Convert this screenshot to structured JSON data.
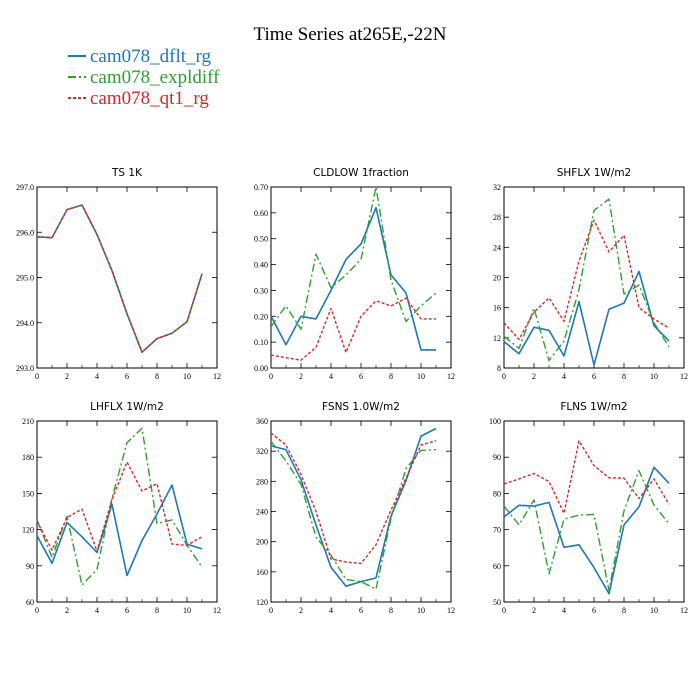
{
  "title": "Time Series at265E,-22N",
  "colors": {
    "dflt": "#1f77b4",
    "expl": "#2ca02c",
    "qt1": "#d62728"
  },
  "legend": [
    {
      "name": "cam078_dflt_rg",
      "color": "#1f77b4"
    },
    {
      "name": "cam078_expldiff",
      "color": "#2ca02c"
    },
    {
      "name": "cam078_qt1_rg",
      "color": "#d62728"
    }
  ],
  "chart_data": [
    {
      "type": "line",
      "title": "TS   1K",
      "x": [
        0,
        1,
        2,
        3,
        4,
        5,
        6,
        7,
        8,
        9,
        10,
        11
      ],
      "xlim": [
        0,
        12
      ],
      "xticks": [
        0,
        2,
        4,
        6,
        8,
        10,
        12
      ],
      "xticklabels": [
        "0",
        "2",
        "4",
        "6",
        "8",
        "10",
        "12"
      ],
      "ylim": [
        293.0,
        297.0
      ],
      "yticks": [
        293.0,
        294.0,
        295.0,
        296.0,
        297.0
      ],
      "yticklabels": [
        "293.0",
        "294.0",
        "295.0",
        "296.0",
        "297.0"
      ],
      "series": [
        {
          "name": "cam078_dflt_rg",
          "values": [
            295.9,
            295.88,
            296.5,
            296.6,
            295.95,
            295.15,
            294.2,
            293.35,
            293.65,
            293.77,
            294.02,
            295.08
          ]
        },
        {
          "name": "cam078_expldiff",
          "values": [
            295.9,
            295.88,
            296.5,
            296.6,
            295.95,
            295.15,
            294.2,
            293.35,
            293.65,
            293.77,
            294.02,
            295.08
          ]
        },
        {
          "name": "cam078_qt1_rg",
          "values": [
            295.9,
            295.88,
            296.5,
            296.6,
            295.95,
            295.15,
            294.2,
            293.35,
            293.65,
            293.77,
            294.02,
            295.08
          ]
        }
      ]
    },
    {
      "type": "line",
      "title": "CLDLOW   1fraction",
      "x": [
        0,
        1,
        2,
        3,
        4,
        5,
        6,
        7,
        8,
        9,
        10,
        11
      ],
      "xlim": [
        0,
        12
      ],
      "xticks": [
        0,
        2,
        4,
        6,
        8,
        10,
        12
      ],
      "xticklabels": [
        "0",
        "2",
        "4",
        "6",
        "8",
        "10",
        "12"
      ],
      "ylim": [
        0.0,
        0.7
      ],
      "yticks": [
        0.0,
        0.1,
        0.2,
        0.3,
        0.4,
        0.5,
        0.6,
        0.7
      ],
      "yticklabels": [
        "0.00",
        "0.10",
        "0.20",
        "0.30",
        "0.40",
        "0.50",
        "0.60",
        "0.70"
      ],
      "series": [
        {
          "name": "cam078_dflt_rg",
          "values": [
            0.2,
            0.09,
            0.2,
            0.19,
            0.3,
            0.42,
            0.48,
            0.62,
            0.36,
            0.29,
            0.07,
            0.07
          ]
        },
        {
          "name": "cam078_expldiff",
          "values": [
            0.16,
            0.24,
            0.15,
            0.44,
            0.31,
            0.36,
            0.42,
            0.7,
            0.34,
            0.18,
            0.24,
            0.29
          ]
        },
        {
          "name": "cam078_qt1_rg",
          "values": [
            0.05,
            0.04,
            0.03,
            0.08,
            0.23,
            0.06,
            0.2,
            0.26,
            0.24,
            0.27,
            0.19,
            0.19
          ]
        }
      ]
    },
    {
      "type": "line",
      "title": "SHFLX   1W/m2",
      "x": [
        0,
        1,
        2,
        3,
        4,
        5,
        6,
        7,
        8,
        9,
        10,
        11
      ],
      "xlim": [
        0,
        12
      ],
      "xticks": [
        0,
        2,
        4,
        6,
        8,
        10,
        12
      ],
      "xticklabels": [
        "0",
        "2",
        "4",
        "6",
        "8",
        "10",
        "12"
      ],
      "ylim": [
        8,
        32
      ],
      "yticks": [
        8,
        12,
        16,
        20,
        24,
        28,
        32
      ],
      "yticklabels": [
        "8",
        "12",
        "16",
        "20",
        "24",
        "28",
        "32"
      ],
      "series": [
        {
          "name": "cam078_dflt_rg",
          "values": [
            11.5,
            9.9,
            13.4,
            13.0,
            9.6,
            16.8,
            8.4,
            15.8,
            16.6,
            20.8,
            13.6,
            11.6
          ]
        },
        {
          "name": "cam078_expldiff",
          "values": [
            12.2,
            10.6,
            15.9,
            9.0,
            11.6,
            18.4,
            28.9,
            30.4,
            17.8,
            19.0,
            14.0,
            10.8
          ]
        },
        {
          "name": "cam078_qt1_rg",
          "values": [
            14.0,
            11.8,
            15.4,
            17.3,
            14.2,
            22.2,
            27.6,
            23.4,
            25.6,
            16.0,
            14.5,
            13.3
          ]
        }
      ]
    },
    {
      "type": "line",
      "title": "LHFLX   1W/m2",
      "x": [
        0,
        1,
        2,
        3,
        4,
        5,
        6,
        7,
        8,
        9,
        10,
        11
      ],
      "xlim": [
        0,
        12
      ],
      "xticks": [
        0,
        2,
        4,
        6,
        8,
        10,
        12
      ],
      "xticklabels": [
        "0",
        "2",
        "4",
        "6",
        "8",
        "10",
        "12"
      ],
      "ylim": [
        60,
        210
      ],
      "yticks": [
        60,
        90,
        120,
        150,
        180,
        210
      ],
      "yticklabels": [
        "60",
        "90",
        "120",
        "150",
        "180",
        "210"
      ],
      "series": [
        {
          "name": "cam078_dflt_rg",
          "values": [
            115,
            92,
            126,
            114,
            101,
            141,
            82,
            111,
            133,
            157,
            108,
            104
          ]
        },
        {
          "name": "cam078_expldiff",
          "values": [
            128,
            97,
            131,
            74,
            87,
            146,
            192,
            204,
            125,
            128,
            107,
            89
          ]
        },
        {
          "name": "cam078_qt1_rg",
          "values": [
            127,
            103,
            130,
            137,
            102,
            145,
            176,
            152,
            158,
            108,
            107,
            114
          ]
        }
      ]
    },
    {
      "type": "line",
      "title": "FSNS   1.0W/m2",
      "x": [
        0,
        1,
        2,
        3,
        4,
        5,
        6,
        7,
        8,
        9,
        10,
        11
      ],
      "xlim": [
        0,
        12
      ],
      "xticks": [
        0,
        2,
        4,
        6,
        8,
        10,
        12
      ],
      "xticklabels": [
        "0",
        "2",
        "4",
        "6",
        "8",
        "10",
        "12"
      ],
      "ylim": [
        120,
        360
      ],
      "yticks": [
        120,
        160,
        200,
        240,
        280,
        320,
        360
      ],
      "yticklabels": [
        "120",
        "160",
        "200",
        "240",
        "280",
        "320",
        "360"
      ],
      "series": [
        {
          "name": "cam078_dflt_rg",
          "values": [
            327,
            322,
            282,
            222,
            166,
            141,
            147,
            152,
            234,
            281,
            340,
            350
          ]
        },
        {
          "name": "cam078_expldiff",
          "values": [
            333,
            307,
            276,
            206,
            182,
            150,
            147,
            137,
            231,
            297,
            321,
            322
          ]
        },
        {
          "name": "cam078_qt1_rg",
          "values": [
            344,
            328,
            289,
            240,
            177,
            173,
            171,
            196,
            242,
            284,
            328,
            334
          ]
        }
      ]
    },
    {
      "type": "line",
      "title": "FLNS   1W/m2",
      "x": [
        0,
        1,
        2,
        3,
        4,
        5,
        6,
        7,
        8,
        9,
        10,
        11
      ],
      "xlim": [
        0,
        12
      ],
      "xticks": [
        0,
        2,
        4,
        6,
        8,
        10,
        12
      ],
      "xticklabels": [
        "0",
        "2",
        "4",
        "6",
        "8",
        "10",
        "12"
      ],
      "ylim": [
        50,
        100
      ],
      "yticks": [
        50,
        60,
        70,
        80,
        90,
        100
      ],
      "yticklabels": [
        "50",
        "60",
        "70",
        "80",
        "90",
        "100"
      ],
      "series": [
        {
          "name": "cam078_dflt_rg",
          "values": [
            73.5,
            76.7,
            76.5,
            77.5,
            65.1,
            65.8,
            59.5,
            52.3,
            71.3,
            76.3,
            87.2,
            82.8
          ]
        },
        {
          "name": "cam078_expldiff",
          "values": [
            76.5,
            71.3,
            78.2,
            57.8,
            72.9,
            74.0,
            74.2,
            53.2,
            75.2,
            86.3,
            76.8,
            71.6
          ]
        },
        {
          "name": "cam078_qt1_rg",
          "values": [
            82.6,
            84.0,
            85.5,
            83.3,
            74.5,
            94.5,
            87.7,
            84.3,
            84.2,
            78.6,
            84.0,
            77.0
          ]
        }
      ]
    }
  ]
}
